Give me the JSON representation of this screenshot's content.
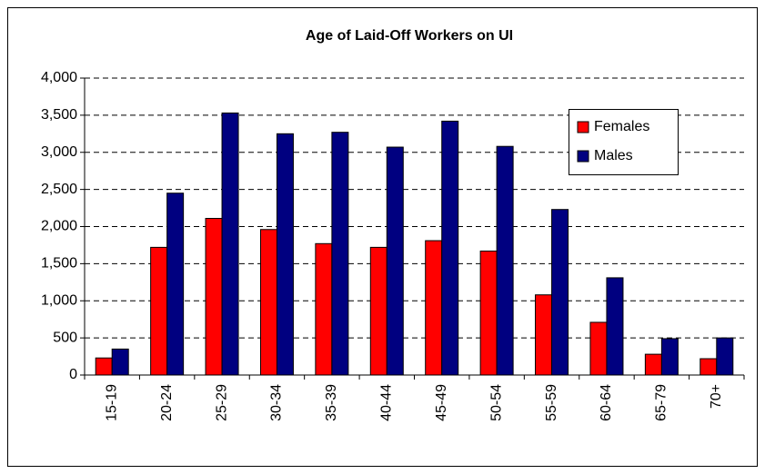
{
  "chart_data": {
    "type": "bar",
    "title": "Age of Laid-Off Workers on UI",
    "categories": [
      "15-19",
      "20-24",
      "25-29",
      "30-34",
      "35-39",
      "40-44",
      "45-49",
      "50-54",
      "55-59",
      "60-64",
      "65-79",
      "70+"
    ],
    "series": [
      {
        "name": "Females",
        "color": "#ff0000",
        "values": [
          230,
          1720,
          2110,
          1960,
          1770,
          1720,
          1810,
          1670,
          1080,
          710,
          280,
          220
        ]
      },
      {
        "name": "Males",
        "color": "#000080",
        "values": [
          350,
          2450,
          3530,
          3250,
          3270,
          3070,
          3420,
          3080,
          2230,
          1310,
          490,
          500
        ]
      }
    ],
    "ylim": [
      0,
      4000
    ],
    "yticks": [
      0,
      500,
      {
        "value": 1000,
        "label": "1,000"
      },
      {
        "value": 1500,
        "label": "1,500"
      },
      {
        "value": 2000,
        "label": "2,000"
      },
      {
        "value": 2500,
        "label": "2,500"
      },
      {
        "value": 3000,
        "label": "3,000"
      },
      {
        "value": 3500,
        "label": "3,500"
      },
      {
        "value": 4000,
        "label": "4,000"
      }
    ],
    "grid": true,
    "legend": "upper right"
  }
}
